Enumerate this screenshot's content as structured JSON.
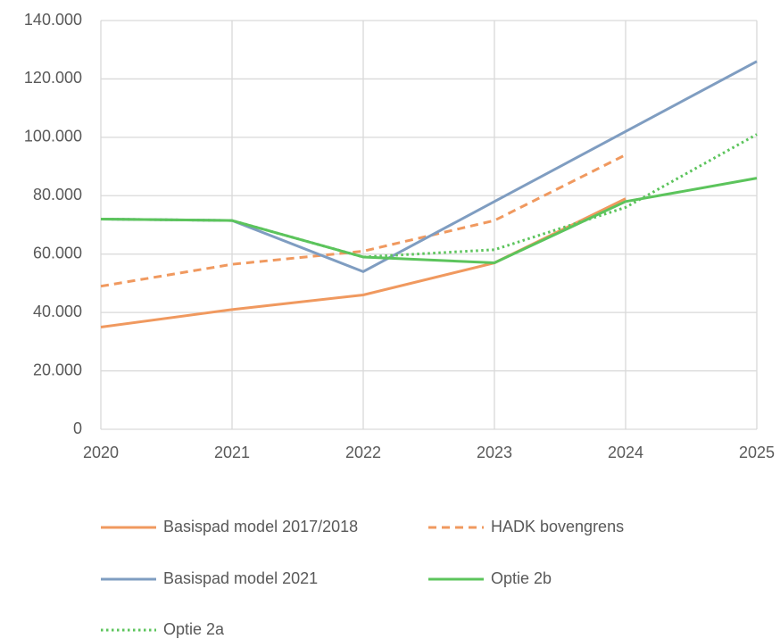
{
  "chart_data": {
    "type": "line",
    "x": [
      2020,
      2021,
      2022,
      2023,
      2024,
      2025
    ],
    "xlim": [
      2020,
      2025
    ],
    "xticks": [
      2020,
      2021,
      2022,
      2023,
      2024,
      2025
    ],
    "ylim": [
      0,
      140000
    ],
    "yticks": [
      0,
      {
        "value": 20000,
        "label": "20.000"
      },
      {
        "value": 40000,
        "label": "40.000"
      },
      {
        "value": 60000,
        "label": "60.000"
      },
      {
        "value": 80000,
        "label": "80.000"
      },
      {
        "value": 100000,
        "label": "100.000"
      },
      {
        "value": 120000,
        "label": "120.000"
      },
      {
        "value": 140000,
        "label": "140.000"
      }
    ],
    "grid": true,
    "legend": "bottom",
    "series": [
      {
        "name": "Basispad model 2017/2018",
        "color": "#f0995f",
        "dash": "solid",
        "values": [
          35000,
          41000,
          46000,
          57000,
          79000,
          null
        ]
      },
      {
        "name": "HADK bovengrens",
        "color": "#f0995f",
        "dash": "dashed",
        "values": [
          49000,
          56500,
          61000,
          71500,
          94000,
          null
        ]
      },
      {
        "name": "Basispad model 2021",
        "color": "#7f9dc1",
        "dash": "solid",
        "values": [
          72000,
          71500,
          54000,
          78000,
          102000,
          126000
        ]
      },
      {
        "name": "Optie 2b",
        "color": "#5cc45c",
        "dash": "solid",
        "values": [
          72000,
          71500,
          59000,
          57000,
          78000,
          86000
        ]
      },
      {
        "name": "Optie 2a",
        "color": "#5cc45c",
        "dash": "dotted",
        "values": [
          72000,
          71500,
          59000,
          61500,
          76000,
          101000
        ]
      }
    ]
  }
}
